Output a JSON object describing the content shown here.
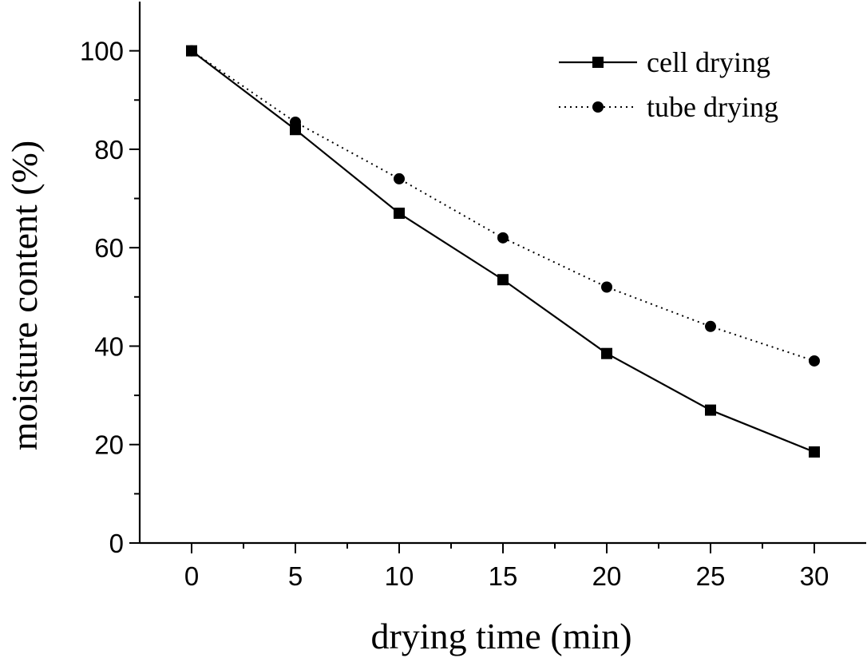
{
  "chart_data": {
    "type": "line",
    "title": "",
    "xlabel": "drying time (min)",
    "ylabel": "moisture content (%)",
    "x": [
      0,
      5,
      10,
      15,
      20,
      25,
      30
    ],
    "xticks": [
      0,
      5,
      10,
      15,
      20,
      25,
      30
    ],
    "yticks": [
      0,
      20,
      40,
      60,
      80,
      100
    ],
    "xlim": [
      -2.5,
      32.5
    ],
    "ylim": [
      0,
      110
    ],
    "grid": false,
    "legend_position": "top-right",
    "series": [
      {
        "name": "cell drying",
        "marker": "square",
        "line_style": "solid",
        "color": "#000000",
        "values": [
          100,
          84,
          67,
          53.5,
          38.5,
          27,
          18.5
        ]
      },
      {
        "name": "tube drying",
        "marker": "circle",
        "line_style": "dotted",
        "color": "#000000",
        "values": [
          100,
          85.5,
          74,
          62,
          52,
          44,
          37
        ]
      }
    ]
  }
}
